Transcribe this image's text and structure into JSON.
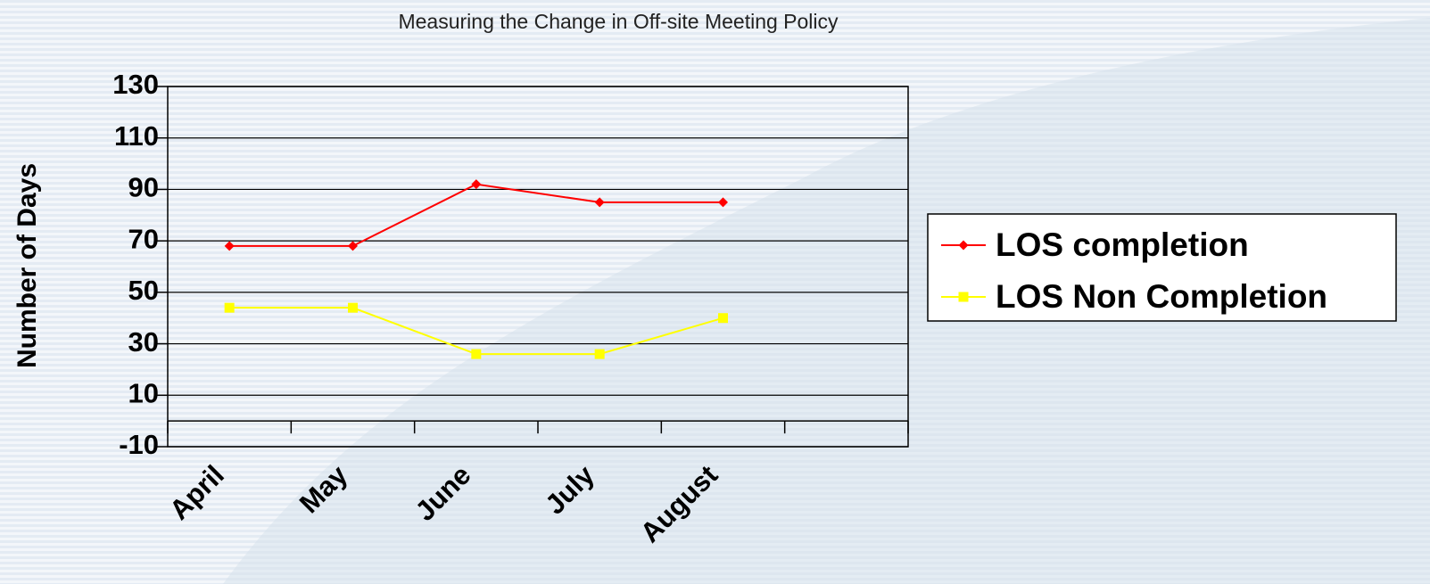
{
  "chart_data": {
    "type": "line",
    "title": "Measuring the Change in Off-site Meeting Policy",
    "y_label": "Number of Days",
    "categories": [
      "April",
      "May",
      "June",
      "July",
      "August",
      null
    ],
    "series": [
      {
        "name": "LOS completion",
        "color": "#ff0000",
        "marker": "diamond",
        "values": [
          68,
          68,
          92,
          85,
          85,
          null
        ]
      },
      {
        "name": "LOS Non Completion",
        "color": "#ffff00",
        "marker": "square",
        "values": [
          44,
          44,
          26,
          26,
          40,
          null
        ]
      }
    ],
    "ylim": [
      -10,
      130
    ],
    "yticks": [
      -10,
      10,
      30,
      50,
      70,
      90,
      110,
      130
    ],
    "grid": true,
    "legend": "right"
  }
}
